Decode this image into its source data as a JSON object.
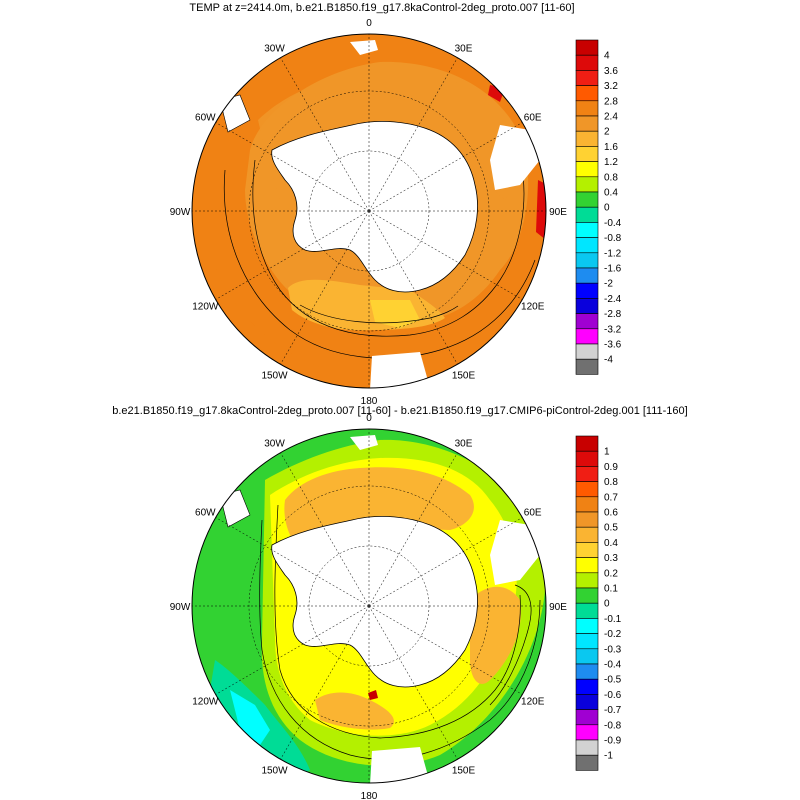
{
  "panels": [
    {
      "title": "TEMP at z=2414.0m, b.e21.B1850.f19_g17.8kaControl-2deg_proto.007 [11-60]",
      "lon_labels": [
        "0",
        "30E",
        "60E",
        "90E",
        "120E",
        "150E",
        "180",
        "150W",
        "120W",
        "90W",
        "60W",
        "30W"
      ],
      "colorbar": {
        "labels": [
          "4",
          "3.6",
          "3.2",
          "2.8",
          "2.4",
          "2",
          "1.6",
          "1.2",
          "0.8",
          "0.4",
          "0",
          "-0.4",
          "-0.8",
          "-1.2",
          "-1.6",
          "-2",
          "-2.4",
          "-2.8",
          "-3.2",
          "-3.6",
          "-4"
        ],
        "colors": [
          "#c80000",
          "#dd0a0a",
          "#f01e14",
          "#ff5a00",
          "#f08214",
          "#f09628",
          "#fab432",
          "#ffd232",
          "#ffff00",
          "#b4f000",
          "#32d232",
          "#00dc96",
          "#00ffff",
          "#00e6ff",
          "#0ac8f0",
          "#1e8cf0",
          "#0000ff",
          "#0a00dc",
          "#a000d2",
          "#ff00ff",
          "#d2d2d2",
          "#707070"
        ]
      }
    },
    {
      "title": "b.e21.B1850.f19_g17.8kaControl-2deg_proto.007 [11-60] - b.e21.B1850.f19_g17.CMIP6-piControl-2deg.001 [111-160]",
      "lon_labels": [
        "0",
        "30E",
        "60E",
        "90E",
        "120E",
        "150E",
        "180",
        "150W",
        "120W",
        "90W",
        "60W",
        "30W"
      ],
      "colorbar": {
        "labels": [
          "1",
          "0.9",
          "0.8",
          "0.7",
          "0.6",
          "0.5",
          "0.4",
          "0.3",
          "0.2",
          "0.1",
          "0",
          "-0.1",
          "-0.2",
          "-0.3",
          "-0.4",
          "-0.5",
          "-0.6",
          "-0.7",
          "-0.8",
          "-0.9",
          "-1"
        ],
        "colors": [
          "#c80000",
          "#dd0a0a",
          "#f01e14",
          "#ff5a00",
          "#f08214",
          "#f09628",
          "#fab432",
          "#ffd232",
          "#ffff00",
          "#b4f000",
          "#32d232",
          "#00dc96",
          "#00ffff",
          "#00e6ff",
          "#0ac8f0",
          "#1e8cf0",
          "#0000ff",
          "#0a00dc",
          "#a000d2",
          "#ff00ff",
          "#d2d2d2",
          "#707070"
        ]
      }
    }
  ]
}
